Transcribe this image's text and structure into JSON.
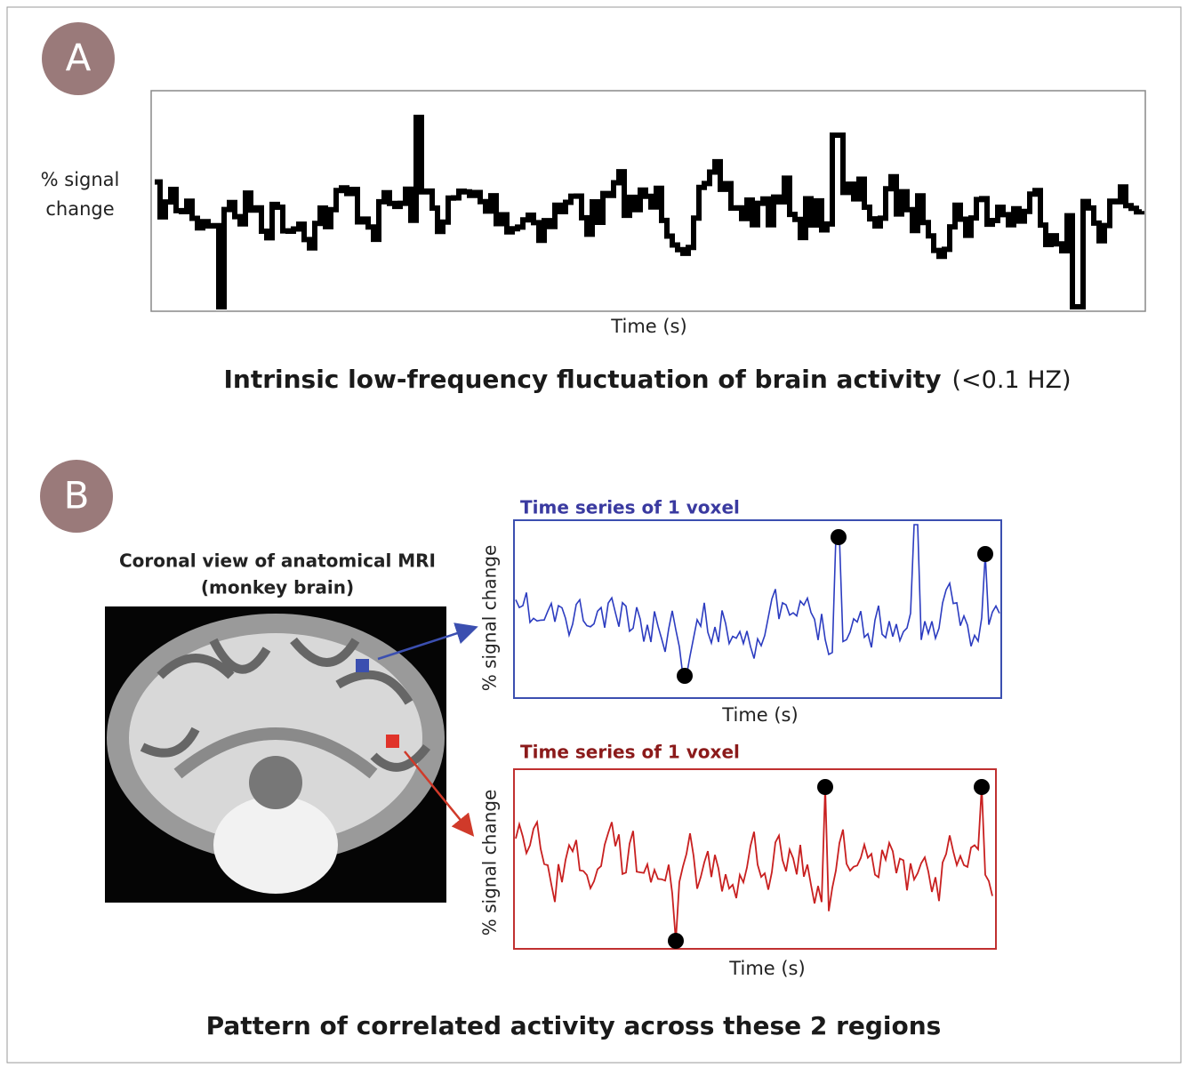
{
  "panel_a": {
    "label": "A",
    "y_label": [
      "% signal",
      "change"
    ],
    "x_label": "Time (s)",
    "title": "Intrinsic low-frequency fluctuation of brain activity",
    "title_note": "(<0.1 HZ)"
  },
  "panel_b": {
    "label": "B",
    "image_caption": [
      "Coronal view of anatomical MRI",
      "(monkey brain)"
    ],
    "charts": [
      {
        "title": "Time series of 1 voxel",
        "y_label": "% signal change",
        "x_label": "Time (s)"
      },
      {
        "title": "Time series of 1 voxel",
        "y_label": "% signal change",
        "x_label": "Time (s)"
      }
    ],
    "caption": "Pattern of correlated activity across these 2 regions"
  }
}
